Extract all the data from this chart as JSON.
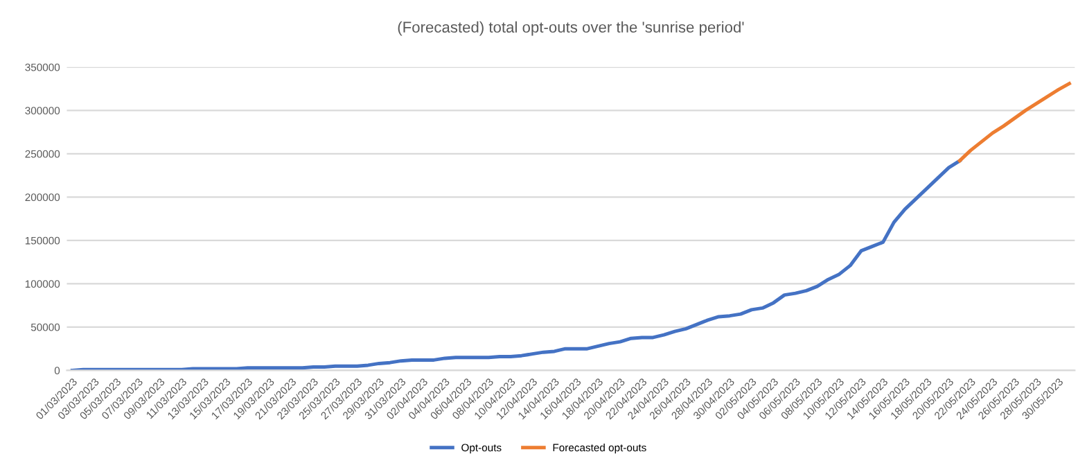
{
  "chart_data": {
    "type": "line",
    "title": "(Forecasted) total opt-outs over the 'sunrise period'",
    "categories": [
      "01/03/2023",
      null,
      "03/03/2023",
      null,
      "05/03/2023",
      null,
      "07/03/2023",
      null,
      "09/03/2023",
      null,
      "11/03/2023",
      null,
      "13/03/2023",
      null,
      "15/03/2023",
      null,
      "17/03/2023",
      null,
      "19/03/2023",
      null,
      "21/03/2023",
      null,
      "23/03/2023",
      null,
      "25/03/2023",
      null,
      "27/03/2023",
      null,
      "29/03/2023",
      null,
      "31/03/2023",
      null,
      "02/04/2023",
      null,
      "04/04/2023",
      null,
      "06/04/2023",
      null,
      "08/04/2023",
      null,
      "10/04/2023",
      null,
      "12/04/2023",
      null,
      "14/04/2023",
      null,
      "16/04/2023",
      null,
      "18/04/2023",
      null,
      "20/04/2023",
      null,
      "22/04/2023",
      null,
      "24/04/2023",
      null,
      "26/04/2023",
      null,
      "28/04/2023",
      null,
      "30/04/2023",
      null,
      "02/05/2023",
      null,
      "04/05/2023",
      null,
      "06/05/2023",
      null,
      "08/05/2023",
      null,
      "10/05/2023",
      null,
      "12/05/2023",
      null,
      "14/05/2023",
      null,
      "16/05/2023",
      null,
      "18/05/2023",
      null,
      "20/05/2023",
      null,
      "22/05/2023",
      null,
      "24/05/2023",
      null,
      "26/05/2023",
      null,
      "28/05/2023",
      null,
      "30/05/2023",
      null
    ],
    "series": [
      {
        "name": "Opt-outs",
        "color": "#4472c4",
        "values": [
          0,
          1000,
          1000,
          1000,
          1000,
          1000,
          1000,
          1000,
          1000,
          1000,
          1000,
          2000,
          2000,
          2000,
          2000,
          2000,
          3000,
          3000,
          3000,
          3000,
          3000,
          3000,
          4000,
          4000,
          5000,
          5000,
          5000,
          6000,
          8000,
          9000,
          11000,
          12000,
          12000,
          12000,
          14000,
          15000,
          15000,
          15000,
          15000,
          16000,
          16000,
          17000,
          19000,
          21000,
          22000,
          25000,
          25000,
          25000,
          28000,
          31000,
          33000,
          37000,
          38000,
          38000,
          41000,
          45000,
          48000,
          53000,
          58000,
          62000,
          63000,
          65000,
          70000,
          72000,
          78000,
          87000,
          89000,
          92000,
          97000,
          105000,
          111000,
          121000,
          138000,
          143000,
          148000,
          171000,
          186000,
          198000,
          210000,
          222000,
          234000,
          242000,
          null,
          null,
          null,
          null,
          null,
          null,
          null,
          null,
          null,
          null
        ]
      },
      {
        "name": "Forecasted opt-outs",
        "color": "#ed7d31",
        "values": [
          null,
          null,
          null,
          null,
          null,
          null,
          null,
          null,
          null,
          null,
          null,
          null,
          null,
          null,
          null,
          null,
          null,
          null,
          null,
          null,
          null,
          null,
          null,
          null,
          null,
          null,
          null,
          null,
          null,
          null,
          null,
          null,
          null,
          null,
          null,
          null,
          null,
          null,
          null,
          null,
          null,
          null,
          null,
          null,
          null,
          null,
          null,
          null,
          null,
          null,
          null,
          null,
          null,
          null,
          null,
          null,
          null,
          null,
          null,
          null,
          null,
          null,
          null,
          null,
          null,
          null,
          null,
          null,
          null,
          null,
          null,
          null,
          null,
          null,
          null,
          null,
          null,
          null,
          null,
          null,
          null,
          242000,
          254000,
          264000,
          274000,
          282000,
          291000,
          300000,
          308000,
          316000,
          324000,
          331000
        ]
      }
    ],
    "ylim": [
      0,
      350000
    ],
    "yticks": [
      0,
      50000,
      100000,
      150000,
      200000,
      250000,
      300000,
      350000
    ],
    "grid": "y",
    "legend": "bottom",
    "marker": "none",
    "line_style": "solid"
  }
}
